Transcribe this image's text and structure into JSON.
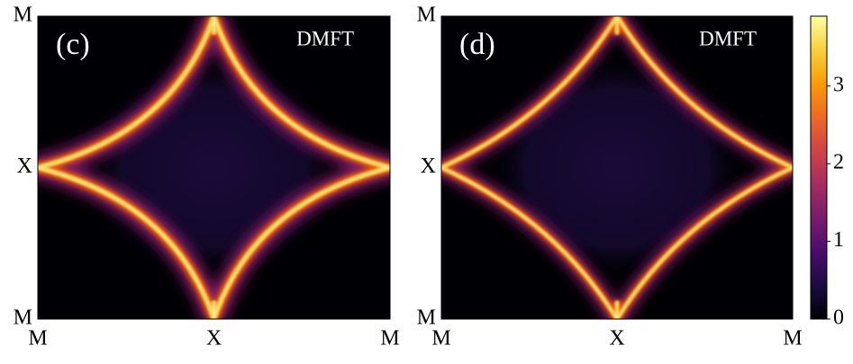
{
  "chart_data": [
    {
      "type": "heatmap",
      "title": "(c)",
      "annotation": "DMFT",
      "categories": [
        "M",
        "X",
        "M"
      ],
      "y_categories": [
        "M",
        "X",
        "M"
      ]
    },
    {
      "type": "heatmap",
      "title": "(d)",
      "annotation": "DMFT",
      "categories": [
        "M",
        "X",
        "M"
      ],
      "y_categories": [
        "M",
        "X",
        "M"
      ]
    }
  ],
  "colorbar": {
    "colormap": "inferno",
    "clim": [
      0,
      3.9
    ],
    "ticks": [
      0,
      1,
      2,
      3
    ]
  }
}
